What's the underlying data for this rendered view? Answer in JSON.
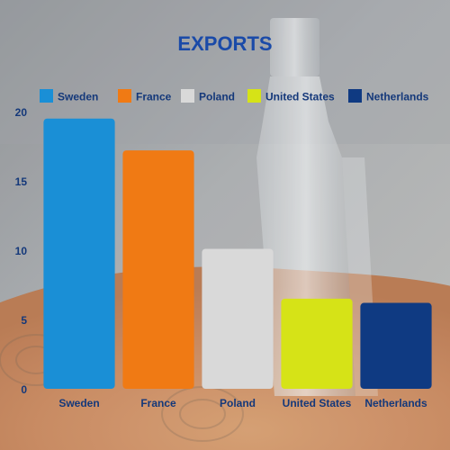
{
  "chart_data": {
    "type": "bar",
    "title": "EXPORTS",
    "categories": [
      "Sweden",
      "France",
      "Poland",
      "United States",
      "Netherlands"
    ],
    "values": [
      19.5,
      17.2,
      10.1,
      6.5,
      6.2
    ],
    "colors": [
      "#1a8fd6",
      "#f07a14",
      "#d9d9d9",
      "#d6e317",
      "#0f3a82"
    ],
    "yticks": [
      0,
      5,
      10,
      15,
      20
    ],
    "ylim": [
      0,
      20
    ],
    "legend_position": "top",
    "grid": false,
    "xlabel": "",
    "ylabel": ""
  }
}
